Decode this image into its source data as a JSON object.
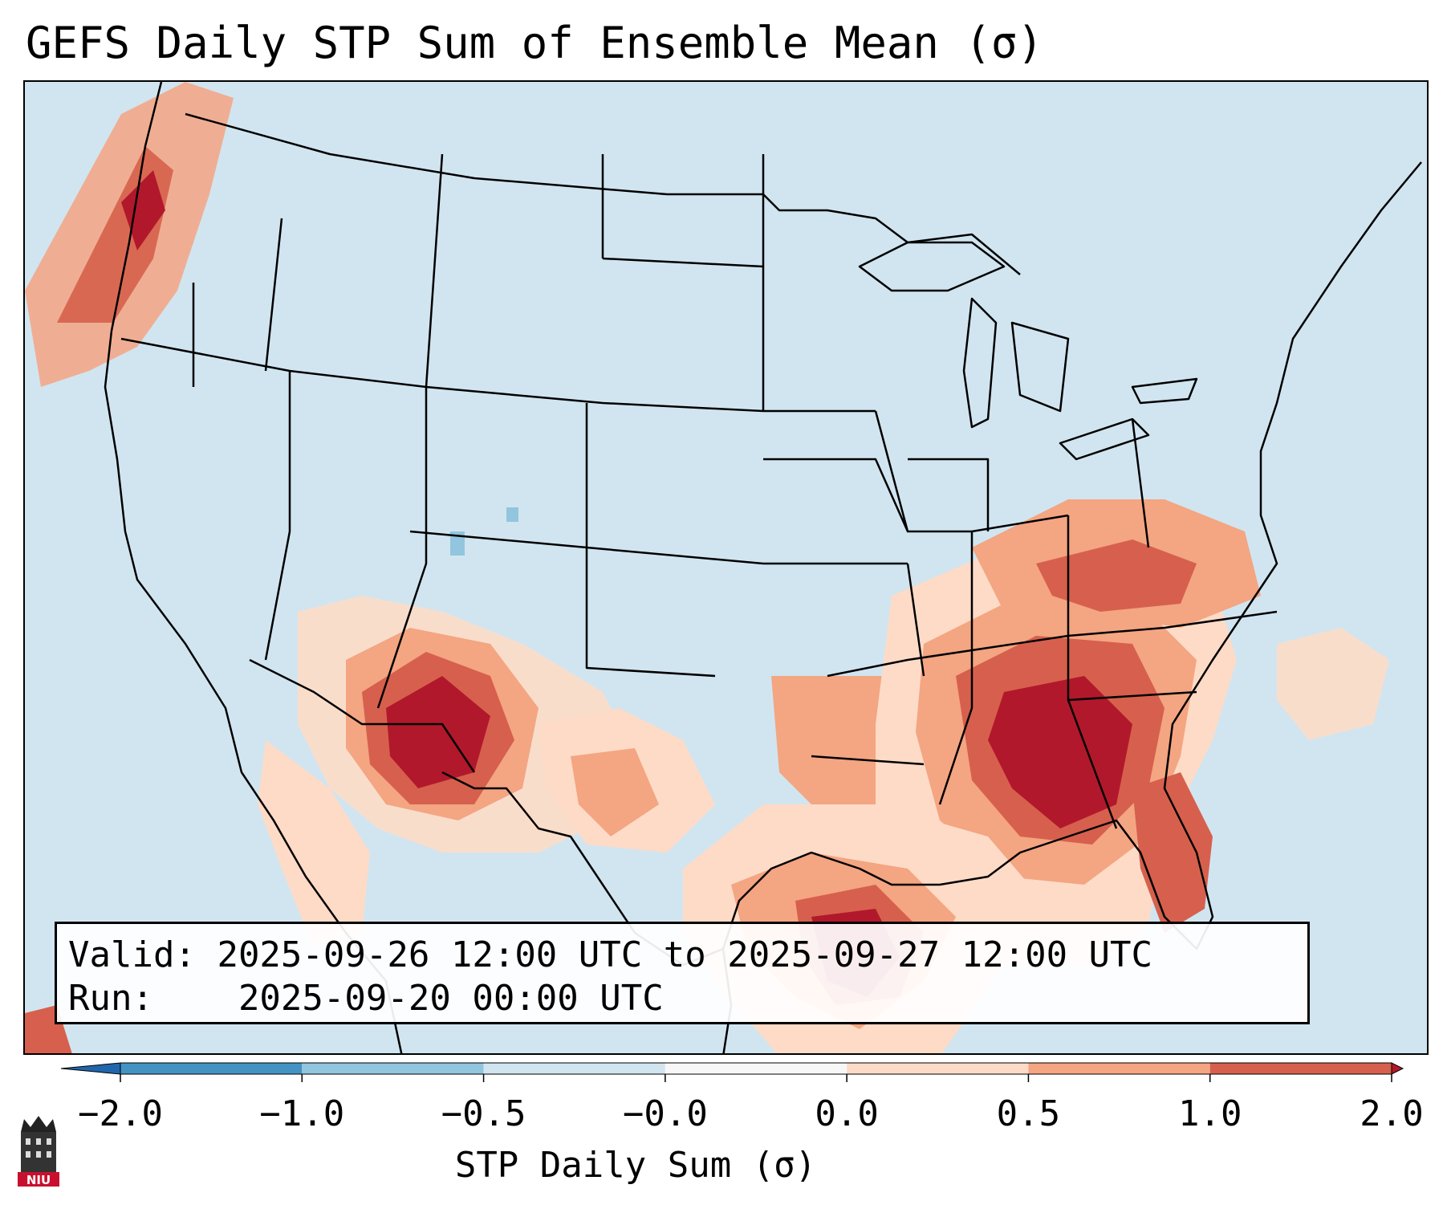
{
  "title": "GEFS Daily STP Sum of Ensemble Mean (σ)",
  "info": {
    "valid_label": "Valid:",
    "valid_value": "2025-09-26 12:00 UTC to 2025-09-27 12:00 UTC",
    "run_label": "Run:",
    "run_value": "2025-09-20 00:00 UTC"
  },
  "colorbar": {
    "title": "STP Daily Sum (σ)",
    "ticks": [
      "−2.0",
      "−1.0",
      "−0.5",
      "−0.0",
      "0.0",
      "0.5",
      "1.0",
      "2.0"
    ],
    "bin_colors": [
      "#4393c3",
      "#92c5de",
      "#d1e5f0",
      "#f7f7f7",
      "#fddbc7",
      "#f4a582",
      "#d6604d"
    ],
    "under_color": "#2166ac",
    "over_color": "#b2182b",
    "extend": "both"
  },
  "map": {
    "background_color": "#d1e5f0",
    "highlights": [
      {
        "region": "southern-plains-southwest",
        "level": "high"
      },
      {
        "region": "southeast-georgia-florida",
        "level": "high"
      },
      {
        "region": "gulf-of-mexico",
        "level": "high"
      },
      {
        "region": "pacific-northwest-offshore",
        "level": "moderate"
      },
      {
        "region": "ohio-valley-mid-atlantic",
        "level": "moderate"
      }
    ]
  },
  "logo": {
    "text": "NIU",
    "color": "#c8102e"
  }
}
